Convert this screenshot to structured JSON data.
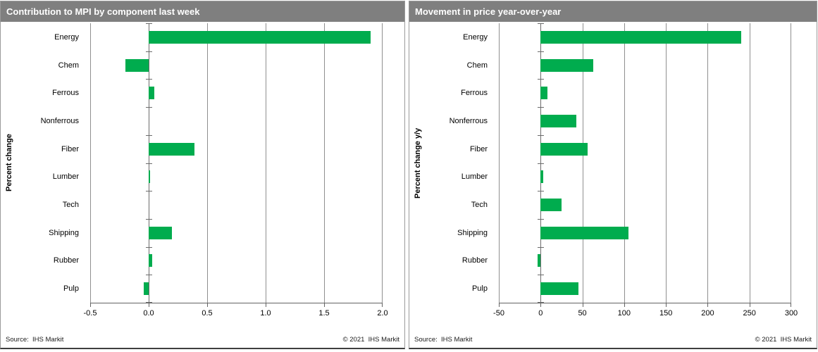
{
  "footer": {
    "source": "Source:  IHS Markit",
    "copyright": "© 2021  IHS Markit"
  },
  "colors": {
    "bar_green": "#00AC4E",
    "header_gray": "#7F7F7F",
    "gridline_gray": "#8F8F8F",
    "axis_gray": "#636363"
  },
  "chart_data": [
    {
      "type": "bar",
      "orientation": "horizontal",
      "title": "Contribution to MPI by component last week",
      "ylabel": "Percent change",
      "xlabel": "",
      "categories": [
        "Energy",
        "Chem",
        "Ferrous",
        "Nonferrous",
        "Fiber",
        "Lumber",
        "Tech",
        "Shipping",
        "Rubber",
        "Pulp"
      ],
      "values": [
        1.9,
        -0.2,
        0.05,
        0.0,
        0.39,
        0.01,
        0.0,
        0.2,
        0.03,
        -0.04
      ],
      "xlim": [
        -0.5,
        2.0
      ],
      "xticks": [
        -0.5,
        0.0,
        0.5,
        1.0,
        1.5,
        2.0
      ],
      "xtick_labels": [
        "-0.5",
        "0.0",
        "0.5",
        "1.0",
        "1.5",
        "2.0"
      ],
      "grid": true,
      "legend": false,
      "bar_color": "#00AC4E"
    },
    {
      "type": "bar",
      "orientation": "horizontal",
      "title": "Movement in price year-over-year",
      "ylabel": "Percent change y/y",
      "xlabel": "",
      "categories": [
        "Energy",
        "Chem",
        "Ferrous",
        "Nonferrous",
        "Fiber",
        "Lumber",
        "Tech",
        "Shipping",
        "Rubber",
        "Pulp"
      ],
      "values": [
        240,
        63,
        8,
        43,
        56,
        3,
        25,
        105,
        -4,
        45
      ],
      "xlim": [
        -50,
        300
      ],
      "xticks": [
        -50,
        0,
        50,
        100,
        150,
        200,
        250,
        300
      ],
      "xtick_labels": [
        "-50",
        "0",
        "50",
        "100",
        "150",
        "200",
        "250",
        "300"
      ],
      "grid": true,
      "legend": false,
      "bar_color": "#00AC4E"
    }
  ]
}
